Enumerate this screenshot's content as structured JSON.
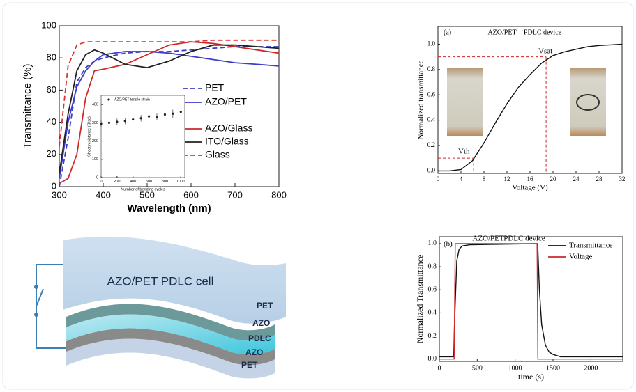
{
  "chart_data": [
    {
      "type": "line",
      "xlabel": "Wavelength (nm)",
      "ylabel": "Transmittance (%)",
      "x": [
        300,
        320,
        340,
        360,
        380,
        400,
        450,
        500,
        550,
        600,
        650,
        700,
        750,
        800
      ],
      "xlim": [
        300,
        800
      ],
      "xticks": [
        300,
        400,
        500,
        600,
        700,
        800
      ],
      "ylim": [
        0,
        100
      ],
      "yticks": [
        0,
        20,
        40,
        60,
        80,
        100
      ],
      "series": [
        {
          "name": "PET",
          "color": "#3c3cc8",
          "dashed": true,
          "values": [
            0,
            30,
            65,
            74,
            78,
            80,
            83,
            84,
            84,
            85,
            86,
            87,
            87,
            87
          ]
        },
        {
          "name": "AZO/PET",
          "color": "#3c3cc8",
          "dashed": false,
          "values": [
            5,
            40,
            62,
            72,
            78,
            82,
            84,
            84,
            83,
            81,
            79,
            77,
            76,
            75
          ]
        },
        {
          "name": "AZO/Glass",
          "color": "#d02828",
          "dashed": false,
          "values": [
            2,
            5,
            20,
            55,
            72,
            73,
            76,
            82,
            88,
            90,
            89,
            87,
            85,
            83
          ]
        },
        {
          "name": "ITO/Glass",
          "color": "#222222",
          "dashed": false,
          "values": [
            8,
            45,
            72,
            82,
            85,
            83,
            76,
            74,
            78,
            84,
            88,
            88,
            87,
            86
          ]
        },
        {
          "name": "Glass",
          "color": "#e03030",
          "dashed": true,
          "values": [
            25,
            75,
            88,
            90,
            90,
            90,
            90,
            90,
            90,
            90,
            91,
            91,
            91,
            91
          ]
        }
      ]
    },
    {
      "type": "scatter",
      "xlabel": "Number of bending cycles",
      "ylabel": "Sheet resistance (Ω/sq)",
      "x": [
        0,
        100,
        200,
        300,
        400,
        500,
        600,
        700,
        800,
        900,
        1000
      ],
      "xlim": [
        0,
        1050
      ],
      "xticks": [
        0,
        200,
        400,
        600,
        800,
        1000
      ],
      "ylim": [
        0,
        450
      ],
      "yticks": [
        0,
        100,
        200,
        300,
        400
      ],
      "series": [
        {
          "name": "AZO/PET tensile strain",
          "color": "#222222",
          "values": [
            295,
            300,
            305,
            310,
            318,
            325,
            335,
            332,
            345,
            350,
            360
          ],
          "errors": [
            18,
            18,
            18,
            18,
            18,
            18,
            20,
            20,
            20,
            22,
            22
          ]
        }
      ]
    },
    {
      "type": "line",
      "xlabel": "Voltage (V)",
      "ylabel": "Normalized transmittance",
      "annotations": [
        "(a)",
        "AZO/PET",
        "PDLC device"
      ],
      "x": [
        0,
        2,
        4,
        6,
        8,
        10,
        12,
        14,
        16,
        18,
        20,
        22,
        24,
        26,
        28,
        30,
        32
      ],
      "xlim": [
        0,
        32
      ],
      "xticks": [
        0,
        4,
        8,
        12,
        16,
        20,
        24,
        28,
        32
      ],
      "ylim": [
        -0.02,
        1.14
      ],
      "yticks": [
        {
          "value": 0,
          "label": "0.0"
        },
        0.2,
        0.4,
        0.6,
        0.8,
        {
          "value": 1,
          "label": "1.0"
        }
      ],
      "series": [
        {
          "color": "#111111",
          "values": [
            0,
            0,
            0.01,
            0.08,
            0.22,
            0.38,
            0.53,
            0.66,
            0.76,
            0.85,
            0.91,
            0.94,
            0.96,
            0.98,
            0.99,
            0.995,
            1.0
          ]
        }
      ],
      "markers": [
        {
          "label": "Vth",
          "x": 6.2,
          "y": 0.1
        },
        {
          "label": "Vsat",
          "x": 18.8,
          "y": 0.9
        }
      ]
    },
    {
      "type": "line",
      "xlabel": "time (s)",
      "ylabel": "Normalized Transmittance",
      "annotations": [
        "(b)",
        "AZO/PET",
        "PDLC device"
      ],
      "xlim": [
        0,
        2420
      ],
      "xticks": [
        0,
        500,
        1000,
        1500,
        2000
      ],
      "ylim": [
        -0.02,
        1.06
      ],
      "yticks": [
        {
          "value": 0,
          "label": "0.0"
        },
        0.2,
        0.4,
        0.6,
        0.8,
        {
          "value": 1,
          "label": "1.0"
        }
      ],
      "series": [
        {
          "name": "Transmittance",
          "color": "#111111",
          "x": [
            0,
            190,
            200,
            230,
            260,
            300,
            400,
            1290,
            1300,
            1320,
            1350,
            1400,
            1450,
            1500,
            1600,
            1800,
            2420
          ],
          "values": [
            0.02,
            0.02,
            0.3,
            0.85,
            0.95,
            0.98,
            0.99,
            1.0,
            0.95,
            0.6,
            0.3,
            0.12,
            0.06,
            0.04,
            0.02,
            0.02,
            0.02
          ]
        },
        {
          "name": "Voltage",
          "color": "#d02828",
          "x": [
            0,
            195,
            210,
            1290,
            1300,
            2420
          ],
          "values": [
            0,
            0,
            1,
            1,
            0,
            0
          ]
        }
      ]
    }
  ],
  "diagram": {
    "title": "AZO/PET  PDLC cell",
    "layers": [
      "PET",
      "AZO",
      "PDLC",
      "AZO",
      "PET"
    ]
  }
}
